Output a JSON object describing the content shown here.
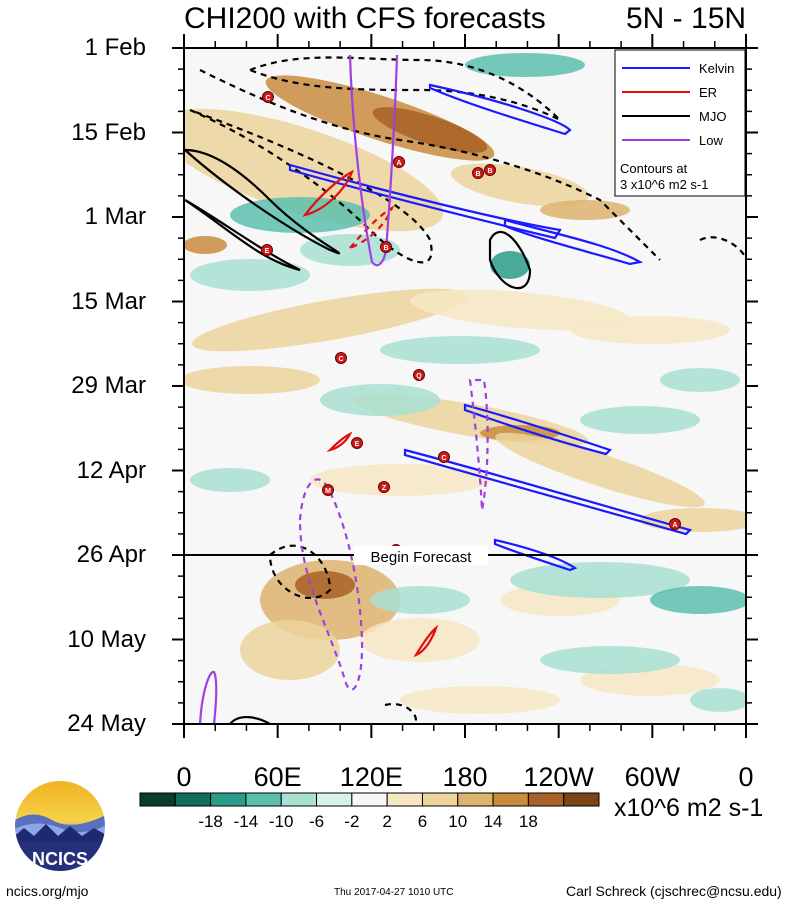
{
  "title": {
    "main": "CHI200 with CFS forecasts",
    "region": "5N - 15N"
  },
  "chart_data": {
    "type": "heatmap",
    "variable": "CHI200",
    "y_ticks": [
      "1 Feb",
      "15 Feb",
      "1 Mar",
      "15 Mar",
      "29 Mar",
      "12 Apr",
      "26 Apr",
      "10 May",
      "24 May"
    ],
    "x_ticks": [
      "0",
      "60E",
      "120E",
      "180",
      "120W",
      "60W",
      "0"
    ],
    "forecast_marker": {
      "label": "Begin Forecast",
      "date": "26 Apr"
    },
    "legend": {
      "entries": [
        {
          "name": "Kelvin",
          "color": "#1a1aff",
          "style": "solid"
        },
        {
          "name": "ER",
          "color": "#e01010",
          "style": "solid"
        },
        {
          "name": "MJO",
          "color": "#000000",
          "style": "solid"
        },
        {
          "name": "Low",
          "color": "#a040e0",
          "style": "solid"
        }
      ],
      "note_line1": "Contours at",
      "note_line2": "3 x10^6 m2 s-1",
      "placement": "top-right"
    },
    "colorbar": {
      "labels": [
        "-18",
        "-14",
        "-10",
        "-6",
        "-2",
        "2",
        "6",
        "10",
        "14",
        "18"
      ],
      "units": "x10^6 m2 s-1",
      "colors": [
        "#0b3d2e",
        "#0f6e5e",
        "#2a9c8a",
        "#5cbfae",
        "#a8e0d2",
        "#d8f2ea",
        "#f7f7f7",
        "#f7e7c4",
        "#ecd49c",
        "#ddb36e",
        "#c98c3f",
        "#a86226",
        "#7a4514"
      ]
    },
    "storm_markers": [
      "C",
      "A",
      "B",
      "B",
      "E",
      "B",
      "C",
      "Q",
      "E",
      "C",
      "M",
      "Z",
      "A",
      "N"
    ]
  },
  "footer": {
    "left": "ncics.org/mjo",
    "middle": "Thu 2017-04-27 1010 UTC",
    "right": "Carl Schreck (cjschrec@ncsu.edu)"
  },
  "logo": {
    "text": "NCICS"
  }
}
